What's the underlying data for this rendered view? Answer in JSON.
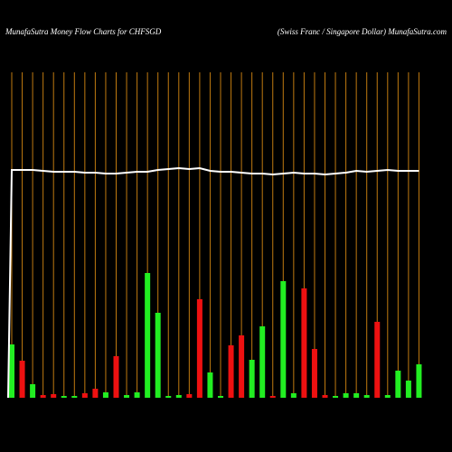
{
  "chart_data": {
    "type": "bar",
    "title": "MunafaSutra  Money Flow  Charts for CHFSGD",
    "subtitle": "(Swiss Franc / Singapore   Dollar) MunafaSutra.com",
    "categories": [
      null,
      null,
      null,
      null,
      null,
      null,
      null,
      null,
      null,
      null,
      null,
      null,
      null,
      null,
      null,
      null,
      null,
      null,
      null,
      null,
      null,
      null,
      null,
      null,
      null,
      null,
      null,
      null,
      null,
      null,
      null,
      null,
      null,
      null,
      null,
      null,
      null,
      null,
      null,
      null
    ],
    "values": [
      59,
      41,
      15,
      3,
      4,
      2,
      2,
      5,
      10,
      6,
      46,
      3,
      6,
      138,
      94,
      2,
      3,
      4,
      109,
      28,
      2,
      58,
      69,
      42,
      79,
      2,
      129,
      5,
      121,
      54,
      3,
      2,
      5,
      5,
      3,
      84,
      3,
      30,
      19,
      37
    ],
    "colors": [
      "#22ee22",
      "#ee1111",
      "#22ee22",
      "#ee1111",
      "#ee1111",
      "#22ee22",
      "#22ee22",
      "#ee1111",
      "#ee1111",
      "#22ee22",
      "#ee1111",
      "#22ee22",
      "#22ee22",
      "#22ee22",
      "#22ee22",
      "#22ee22",
      "#22ee22",
      "#ee1111",
      "#ee1111",
      "#22ee22",
      "#22ee22",
      "#ee1111",
      "#ee1111",
      "#22ee22",
      "#22ee22",
      "#ee1111",
      "#22ee22",
      "#22ee22",
      "#ee1111",
      "#ee1111",
      "#ee1111",
      "#22ee22",
      "#22ee22",
      "#22ee22",
      "#22ee22",
      "#ee1111",
      "#22ee22",
      "#22ee22",
      "#22ee22",
      "#22ee22"
    ],
    "line": {
      "color": "#ffffff",
      "values": [
        252,
        252,
        252,
        251,
        250,
        250,
        250,
        249,
        249,
        248,
        248,
        249,
        250,
        250,
        252,
        253,
        254,
        253,
        254,
        251,
        250,
        250,
        249,
        248,
        248,
        247,
        248,
        249,
        248,
        248,
        247,
        248,
        249,
        251,
        250,
        251,
        252,
        251,
        251,
        251
      ]
    },
    "ylim": [
      0,
      360
    ],
    "grid": true,
    "grid_color": "#c07a10"
  }
}
